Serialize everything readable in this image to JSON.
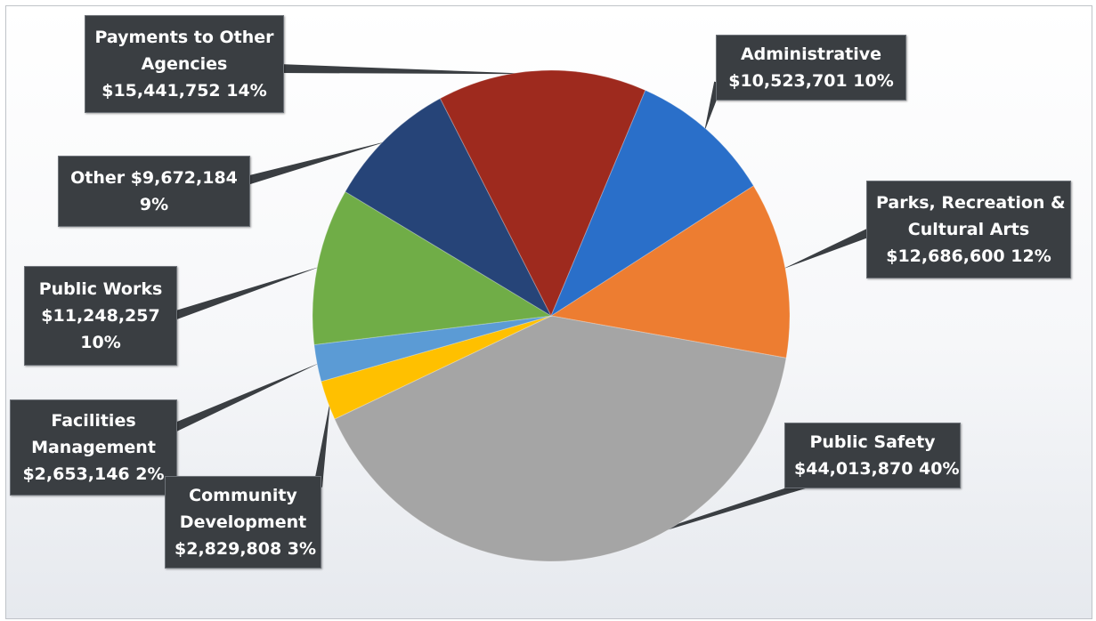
{
  "chart_data": {
    "type": "pie",
    "title": "",
    "start_angle_deg": 0,
    "direction": "clockwise",
    "legend": "none",
    "slices": [
      {
        "name": "Parks, Recreation & Cultural Arts",
        "value": 12686600,
        "percent": 12,
        "color": "#ed7d31"
      },
      {
        "name": "Public Safety",
        "value": 44013870,
        "percent": 40,
        "color": "#a5a5a5"
      },
      {
        "name": "Community Development",
        "value": 2829808,
        "percent": 3,
        "color": "#ffc000"
      },
      {
        "name": "Facilities Management",
        "value": 2653146,
        "percent": 2,
        "color": "#5b9bd5"
      },
      {
        "name": "Public Works",
        "value": 11248257,
        "percent": 10,
        "color": "#70ad47"
      },
      {
        "name": "Other",
        "value": 9672184,
        "percent": 9,
        "color": "#264478"
      },
      {
        "name": "Payments to Other Agencies",
        "value": 15441752,
        "percent": 14,
        "color": "#9e2a1e"
      },
      {
        "name": "Administrative",
        "value": 10523701,
        "percent": 10,
        "color": "#2a6fc9"
      }
    ]
  },
  "labels": {
    "administrative": {
      "line1": "Administrative",
      "line2": "$10,523,701 10%"
    },
    "parks": {
      "line1": "Parks, Recreation &",
      "line2": "Cultural Arts",
      "line3": "$12,686,600 12%"
    },
    "public_safety": {
      "line1": "Public Safety",
      "line2": "$44,013,870 40%"
    },
    "community_development": {
      "line1": "Community",
      "line2": "Development",
      "line3": "$2,829,808 3%"
    },
    "facilities_management": {
      "line1": "Facilities",
      "line2": "Management",
      "line3": "$2,653,146 2%"
    },
    "public_works": {
      "line1": "Public Works",
      "line2": "$11,248,257",
      "line3": "10%"
    },
    "other": {
      "line1": "Other $9,672,184",
      "line2": "9%"
    },
    "payments": {
      "line1": "Payments to Other",
      "line2": "Agencies",
      "line3": "$15,441,752 14%"
    }
  }
}
